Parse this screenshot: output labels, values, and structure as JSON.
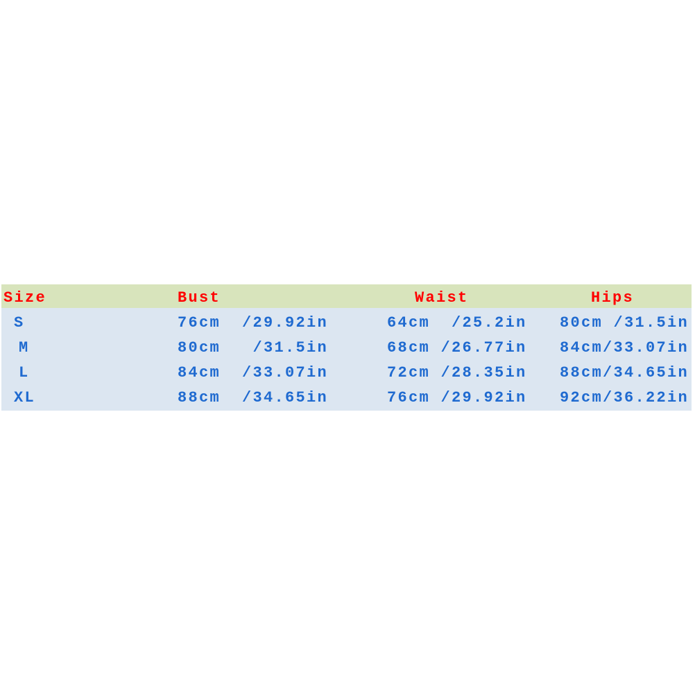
{
  "headers": {
    "size": "Size",
    "bust": "Bust",
    "waist": "Waist",
    "hips": "Hips"
  },
  "colors": {
    "header_bg": "#d8e4bc",
    "body_bg": "#dce6f1",
    "header_text": "#ff0000",
    "body_text": "#1f6ad0"
  },
  "rows": [
    {
      "size": "S",
      "bust": "76cm  /29.92in",
      "waist": "64cm  /25.2in",
      "hips": "80cm /31.5in"
    },
    {
      "size": "M",
      "bust": "80cm   /31.5in",
      "waist": "68cm /26.77in",
      "hips": "84cm/33.07in"
    },
    {
      "size": "L",
      "bust": "84cm  /33.07in",
      "waist": "72cm /28.35in",
      "hips": "88cm/34.65in"
    },
    {
      "size": "XL",
      "bust": "88cm  /34.65in",
      "waist": "76cm /29.92in",
      "hips": "92cm/36.22in"
    }
  ]
}
